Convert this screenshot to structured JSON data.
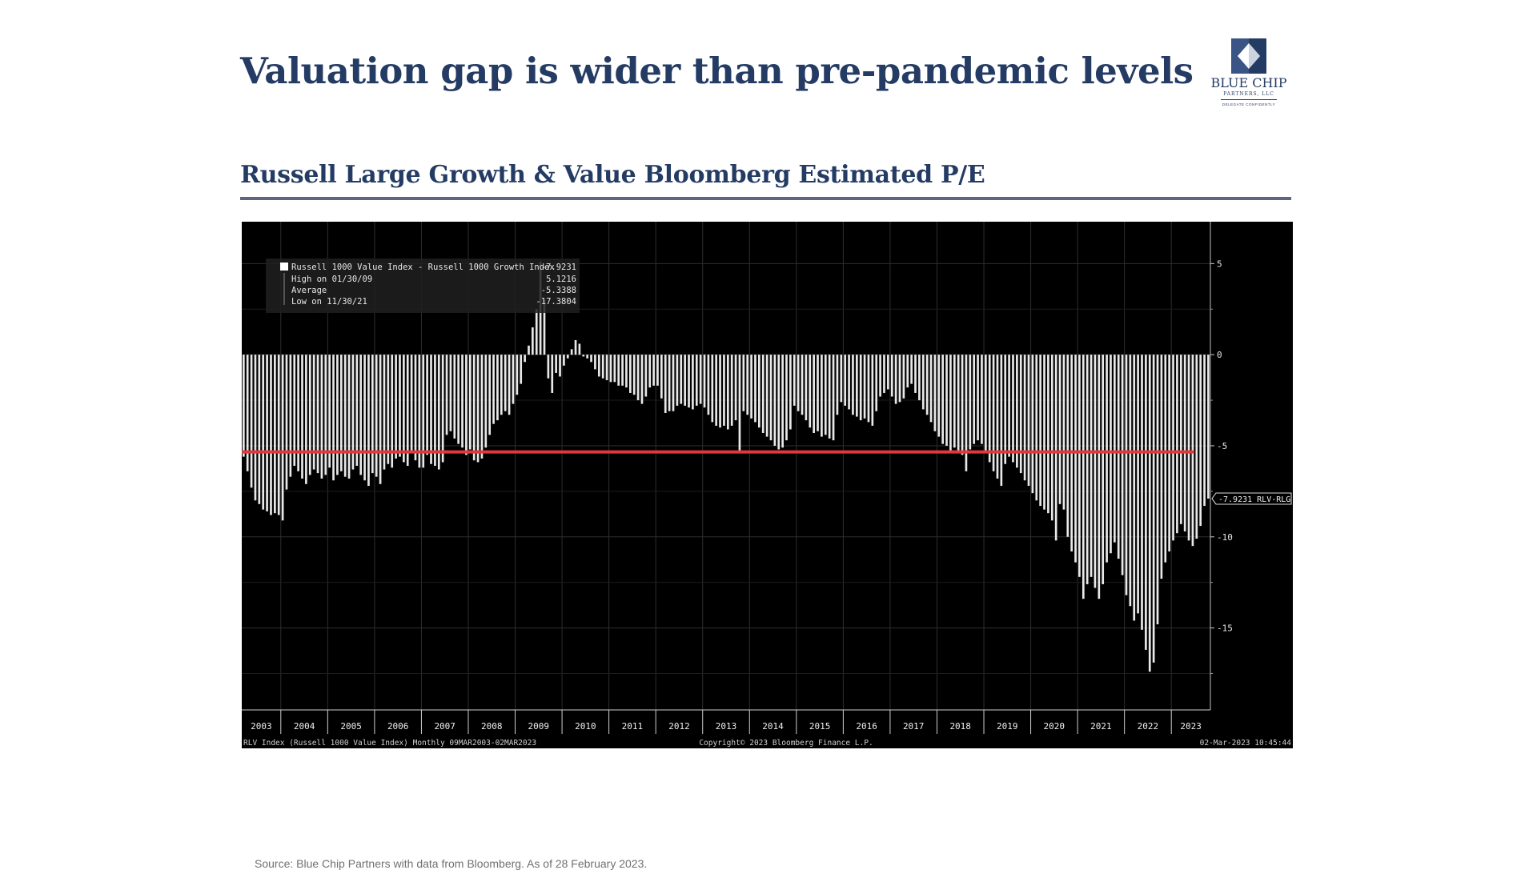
{
  "header": {
    "title": "Valuation gap is wider than pre-pandemic levels",
    "logo_name": "BLUE CHIP",
    "logo_sub": "PARTNERS, LLC",
    "logo_tagline": "DELEGATE CONFIDENTLY"
  },
  "subtitle": "Russell Large Growth & Value Bloomberg Estimated P/E",
  "chart_data": {
    "type": "bar",
    "series_label": "Russell 1000 Value Index - Russell 1000 Growth Index",
    "last_value": "-7.9231",
    "legend_rows": [
      {
        "label": "High on 01/30/09",
        "value": "5.1216"
      },
      {
        "label": "Average",
        "value": "-5.3388"
      },
      {
        "label": "Low on 11/30/21",
        "value": "-17.3804"
      }
    ],
    "average": -5.3388,
    "last_tag": "-7.9231 RLV-RLG",
    "x_labels": [
      "2003",
      "2004",
      "2005",
      "2006",
      "2007",
      "2008",
      "2009",
      "2010",
      "2011",
      "2012",
      "2013",
      "2014",
      "2015",
      "2016",
      "2017",
      "2018",
      "2019",
      "2020",
      "2021",
      "2022",
      "2023"
    ],
    "y_ticks": [
      5,
      0,
      -5,
      -10,
      -15
    ],
    "ylim": [
      -19.5,
      7.3
    ],
    "start": "2003-03",
    "end": "2023-02",
    "values": [
      -5.6,
      -6.4,
      -7.3,
      -8.0,
      -8.2,
      -8.5,
      -8.6,
      -8.8,
      -8.7,
      -8.8,
      -9.1,
      -7.4,
      -6.7,
      -6.1,
      -6.4,
      -6.8,
      -7.1,
      -6.6,
      -6.3,
      -6.5,
      -6.8,
      -6.6,
      -6.2,
      -6.9,
      -6.6,
      -6.4,
      -6.7,
      -6.8,
      -6.3,
      -6.1,
      -6.6,
      -6.9,
      -7.2,
      -6.5,
      -6.7,
      -7.1,
      -6.3,
      -6.0,
      -6.2,
      -5.7,
      -5.6,
      -5.9,
      -6.1,
      -5.4,
      -5.8,
      -6.2,
      -6.2,
      -5.5,
      -6.0,
      -6.1,
      -6.3,
      -5.9,
      -4.4,
      -4.2,
      -4.6,
      -4.9,
      -5.1,
      -5.5,
      -5.2,
      -5.8,
      -5.9,
      -5.7,
      -5.1,
      -4.4,
      -3.8,
      -3.6,
      -3.3,
      -3.1,
      -3.3,
      -2.7,
      -2.2,
      -1.6,
      -0.4,
      0.5,
      1.5,
      2.5,
      5.1,
      3.0,
      -1.3,
      -2.1,
      -1.0,
      -1.2,
      -0.6,
      -0.2,
      0.3,
      0.8,
      0.6,
      -0.1,
      -0.2,
      -0.4,
      -0.8,
      -1.2,
      -1.3,
      -1.4,
      -1.5,
      -1.5,
      -1.7,
      -1.7,
      -1.8,
      -2.1,
      -2.2,
      -2.5,
      -2.7,
      -2.3,
      -1.8,
      -1.7,
      -1.7,
      -2.4,
      -3.2,
      -3.1,
      -3.1,
      -2.8,
      -2.7,
      -2.8,
      -2.9,
      -3.0,
      -2.8,
      -2.7,
      -2.9,
      -3.3,
      -3.7,
      -3.9,
      -4.0,
      -3.9,
      -4.1,
      -3.9,
      -3.6,
      -5.3,
      -3.1,
      -3.3,
      -3.5,
      -3.7,
      -4.0,
      -4.3,
      -4.5,
      -4.7,
      -5.0,
      -5.2,
      -5.1,
      -4.7,
      -4.1,
      -2.8,
      -3.1,
      -3.3,
      -3.6,
      -4.0,
      -4.3,
      -4.2,
      -4.5,
      -4.4,
      -4.6,
      -4.7,
      -3.3,
      -2.6,
      -2.8,
      -3.0,
      -3.3,
      -3.4,
      -3.6,
      -3.5,
      -3.7,
      -3.9,
      -3.1,
      -2.3,
      -2.1,
      -1.9,
      -2.3,
      -2.7,
      -2.6,
      -2.4,
      -1.8,
      -1.6,
      -2.1,
      -2.5,
      -3.0,
      -3.3,
      -3.7,
      -4.2,
      -4.5,
      -4.9,
      -5.0,
      -5.3,
      -5.1,
      -5.3,
      -5.5,
      -6.4,
      -5.2,
      -4.9,
      -4.7,
      -4.9,
      -5.4,
      -5.9,
      -6.4,
      -6.8,
      -7.2,
      -6.0,
      -5.6,
      -5.9,
      -6.2,
      -6.5,
      -6.9,
      -7.2,
      -7.6,
      -8.0,
      -8.3,
      -8.5,
      -8.7,
      -9.1,
      -10.2,
      -8.2,
      -8.5,
      -10.0,
      -10.8,
      -11.4,
      -12.2,
      -13.4,
      -12.6,
      -12.2,
      -12.8,
      -13.4,
      -12.6,
      -11.4,
      -10.9,
      -10.3,
      -11.2,
      -12.1,
      -13.2,
      -13.8,
      -14.6,
      -14.2,
      -15.1,
      -16.2,
      -17.4,
      -16.9,
      -14.8,
      -12.3,
      -11.4,
      -10.8,
      -10.2,
      -9.8,
      -9.3,
      -9.7,
      -10.2,
      -10.5,
      -10.1,
      -9.4,
      -8.3,
      -7.9
    ],
    "footer_left": "RLV Index (Russell 1000 Value Index)  Monthly 09MAR2003-02MAR2023",
    "footer_center": "Copyright© 2023 Bloomberg Finance L.P.",
    "footer_right": "02-Mar-2023 10:45:44",
    "colors": {
      "background": "#000000",
      "bars": "#e8e8e8",
      "average_line": "#e0383b",
      "grid": "#2e2e2e"
    }
  },
  "source": "Source: Blue Chip Partners with data from Bloomberg. As of 28 February 2023."
}
